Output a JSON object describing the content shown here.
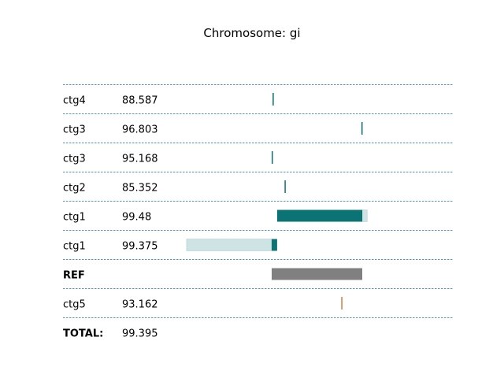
{
  "chart_data": {
    "type": "alignment-map",
    "title": "Chromosome: gi",
    "grid": "dashed row separators",
    "reference_extent": [
      0,
      100
    ],
    "rows": [
      {
        "label": "ctg4",
        "value": "88.587",
        "bold": false,
        "color": "#0b7373",
        "segments": [
          {
            "start": 1,
            "end": 1.6,
            "opacity": 1
          }
        ]
      },
      {
        "label": "ctg3",
        "value": "96.803",
        "bold": false,
        "color": "#0b7373",
        "segments": [
          {
            "start": 99.1,
            "end": 99.5,
            "opacity": 1
          }
        ]
      },
      {
        "label": "ctg3",
        "value": "95.168",
        "bold": false,
        "color": "#0b7373",
        "segments": [
          {
            "start": 0,
            "end": 0.3,
            "opacity": 1
          }
        ]
      },
      {
        "label": "ctg2",
        "value": "85.352",
        "bold": false,
        "color": "#0b7373",
        "segments": [
          {
            "start": 14.2,
            "end": 14.8,
            "opacity": 1
          }
        ]
      },
      {
        "label": "ctg1",
        "value": "99.48",
        "bold": false,
        "color": "#0b7373",
        "segments": [
          {
            "start": 6,
            "end": 100,
            "opacity": 1
          },
          {
            "start": 100,
            "end": 105.5,
            "opacity": 0.2
          }
        ]
      },
      {
        "label": "ctg1",
        "value": "99.375",
        "bold": false,
        "color": "#0b7373",
        "segments": [
          {
            "start": -94,
            "end": 0,
            "opacity": 0.2
          },
          {
            "start": 0,
            "end": 6,
            "opacity": 1
          }
        ]
      },
      {
        "label": "REF",
        "value": "",
        "bold": true,
        "color": "#808080",
        "segments": [
          {
            "start": 0,
            "end": 100,
            "opacity": 1
          }
        ]
      },
      {
        "label": "ctg5",
        "value": "93.162",
        "bold": false,
        "color": "#c87d3c",
        "segments": [
          {
            "start": 76.8,
            "end": 77.3,
            "opacity": 1
          }
        ]
      }
    ],
    "total_label": "TOTAL:",
    "total_value": "99.395"
  }
}
